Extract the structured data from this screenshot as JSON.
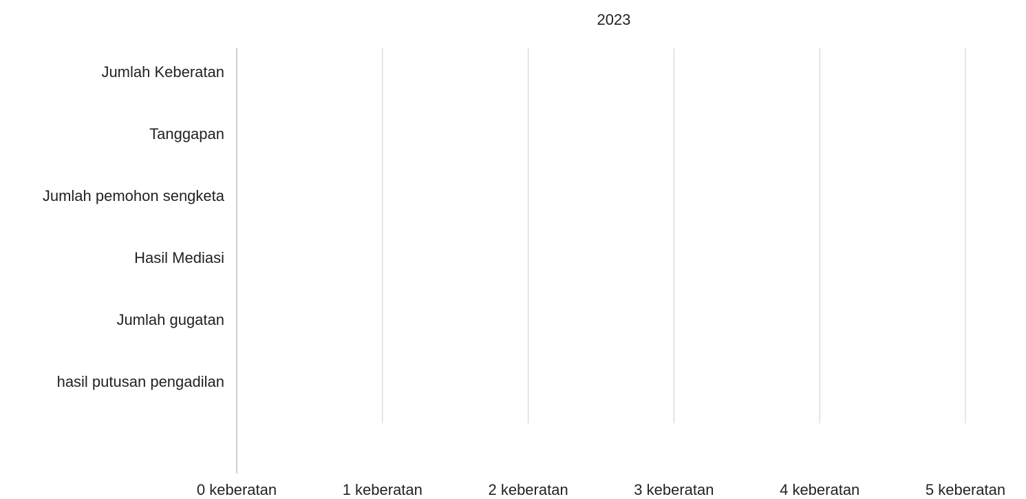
{
  "chart_data": {
    "type": "bar",
    "orientation": "horizontal",
    "title": "2023",
    "categories": [
      "Jumlah Keberatan",
      "Tanggapan",
      "Jumlah pemohon sengketa",
      "Hasil Mediasi",
      "Jumlah gugatan",
      "hasil putusan pengadilan"
    ],
    "series": [
      {
        "values": [
          0,
          0,
          0,
          0,
          0,
          0
        ]
      }
    ],
    "xlim": [
      0,
      5
    ],
    "x_ticks": [
      0,
      1,
      2,
      3,
      4,
      5
    ],
    "x_tick_labels": [
      "0 keberatan",
      "1 keberatan",
      "2 keberatan",
      "3 keberatan",
      "4 keberatan",
      "5 keberatan"
    ],
    "grid": true,
    "colors": {
      "grid": "#cccccc",
      "axis": "#999999",
      "text": "#222222"
    }
  }
}
